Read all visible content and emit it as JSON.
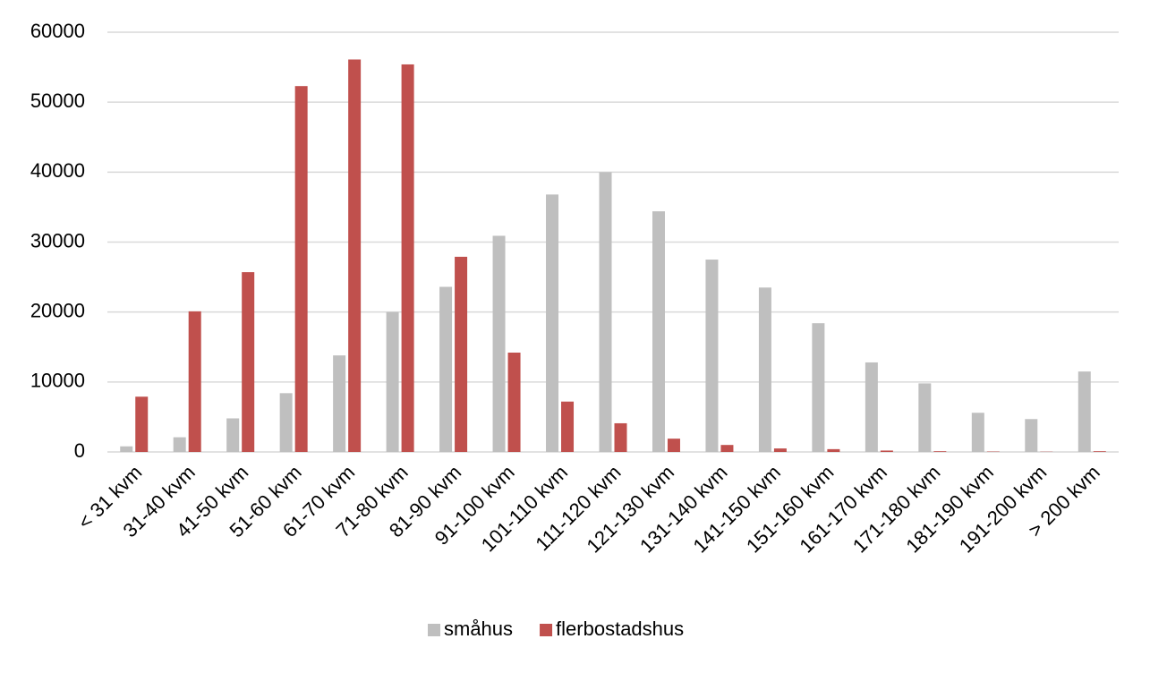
{
  "chart_data": {
    "type": "bar",
    "categories": [
      "< 31 kvm",
      "31-40 kvm",
      "41-50 kvm",
      "51-60 kvm",
      "61-70 kvm",
      "71-80 kvm",
      "81-90 kvm",
      "91-100 kvm",
      "101-110 kvm",
      "111-120 kvm",
      "121-130 kvm",
      "131-140 kvm",
      "141-150 kvm",
      "151-160 kvm",
      "161-170 kvm",
      "171-180 kvm",
      "181-190 kvm",
      "191-200 kvm",
      "> 200 kvm"
    ],
    "series": [
      {
        "name": "småhus",
        "color": "#bfbfbf",
        "values": [
          800,
          2100,
          4800,
          8400,
          13800,
          20000,
          23600,
          30900,
          36800,
          40000,
          34400,
          27500,
          23500,
          18400,
          12800,
          9800,
          5600,
          4700,
          11500
        ]
      },
      {
        "name": "flerbostadshus",
        "color": "#c0504d",
        "values": [
          7900,
          20100,
          25700,
          52300,
          56100,
          55400,
          27900,
          14200,
          7200,
          4100,
          1900,
          1000,
          500,
          400,
          200,
          100,
          50,
          30,
          100
        ]
      }
    ],
    "ylim": [
      0,
      60000
    ],
    "yticks": [
      0,
      10000,
      20000,
      30000,
      40000,
      50000,
      60000
    ],
    "grid": true,
    "legend": "bottom"
  }
}
